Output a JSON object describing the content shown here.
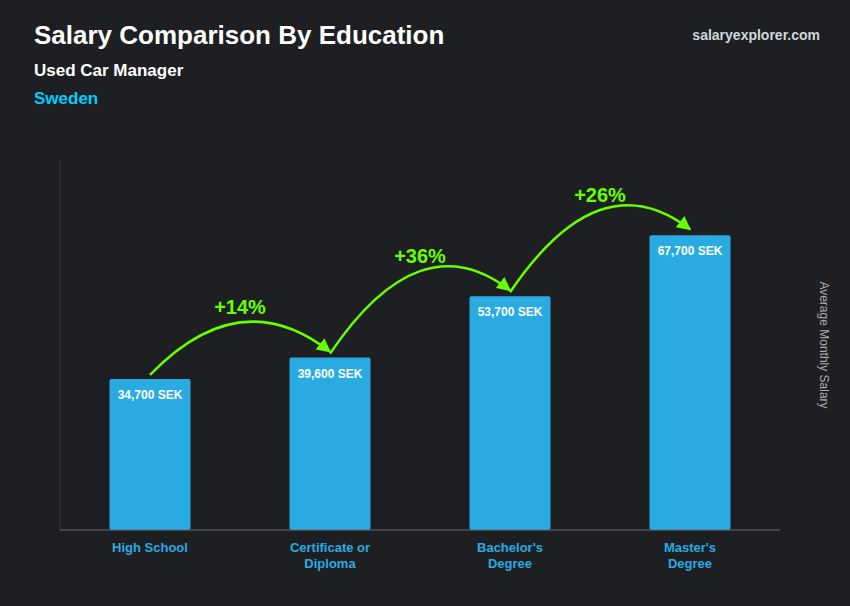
{
  "chart_data": {
    "type": "bar",
    "title": "Salary Comparison By Education",
    "subtitle": "Used Car Manager",
    "ylabel": "Average Monthly Salary",
    "categories": [
      "High School",
      "Certificate or\nDiploma",
      "Bachelor's\nDegree",
      "Master's\nDegree"
    ],
    "values": [
      34700,
      39600,
      53700,
      67700
    ],
    "value_labels": [
      "34,700 SEK",
      "39,600 SEK",
      "53,700 SEK",
      "67,700 SEK"
    ],
    "data_labels": true,
    "color": "#29abe2",
    "ylim": [
      0,
      85000
    ],
    "tick_labels": "x",
    "grid": false,
    "annotations": [
      {
        "text": "Sweden"
      },
      {
        "text": "salaryexplorer.com"
      },
      {
        "text": "+14%",
        "between": [
          0,
          1
        ],
        "color": "#66ff00"
      },
      {
        "text": "+36%",
        "between": [
          1,
          2
        ],
        "color": "#66ff00"
      },
      {
        "text": "+26%",
        "between": [
          2,
          3
        ],
        "color": "#66ff00"
      }
    ]
  }
}
